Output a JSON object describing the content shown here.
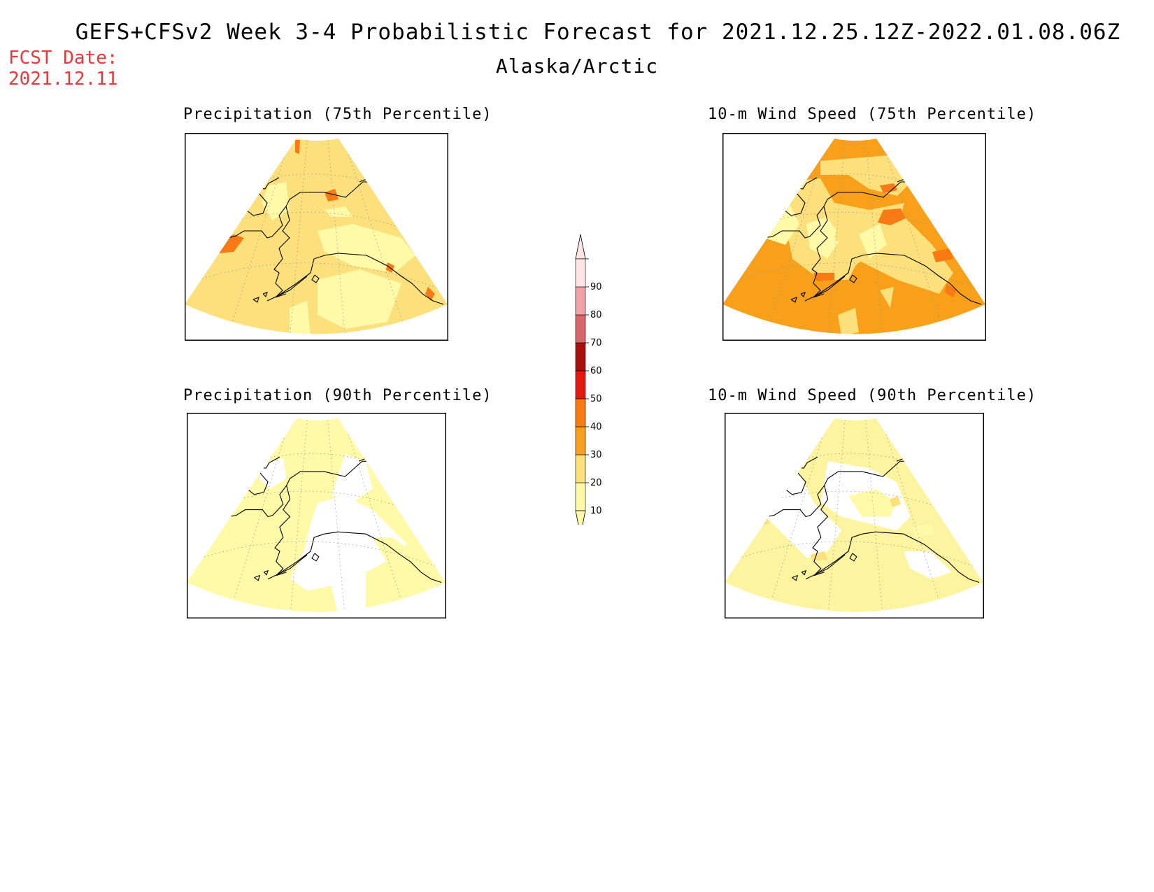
{
  "header": {
    "title": "GEFS+CFSv2 Week 3-4 Probabilistic Forecast for 2021.12.25.12Z-2022.01.08.06Z",
    "subtitle": "Alaska/Arctic",
    "fcst_label": "FCST Date:",
    "fcst_date": "2021.12.11"
  },
  "panels": [
    {
      "title": "Precipitation (75th Percentile)",
      "base_color": "#fbe07c"
    },
    {
      "title": "10-m Wind Speed (75th Percentile)",
      "base_color": "#f8a01a"
    },
    {
      "title": "Precipitation (90th Percentile)",
      "base_color": "#fffaa8"
    },
    {
      "title": "10-m Wind Speed (90th Percentile)",
      "base_color": "#fdf4a0"
    }
  ],
  "colorbar": {
    "labels": [
      "10",
      "20",
      "30",
      "40",
      "50",
      "60",
      "70",
      "80",
      "90"
    ],
    "colors": [
      "#fffaa8",
      "#fbe07c",
      "#f8a01a",
      "#f97a12",
      "#e3180f",
      "#a90f09",
      "#d9646a",
      "#f0a2a6",
      "#fde4e6"
    ]
  }
}
